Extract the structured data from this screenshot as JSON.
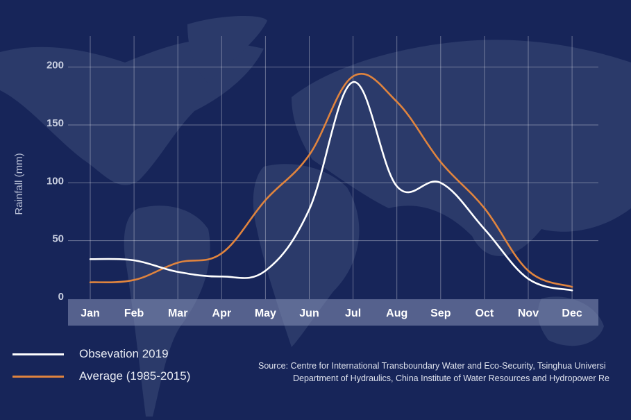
{
  "chart_data": {
    "type": "line",
    "ylabel": "Rainfall (mm)",
    "xlabel": "",
    "categories": [
      "Jan",
      "Feb",
      "Mar",
      "Apr",
      "May",
      "Jun",
      "Jul",
      "Aug",
      "Sep",
      "Oct",
      "Nov",
      "Dec"
    ],
    "yticks": [
      "0",
      "50",
      "100",
      "150",
      "200"
    ],
    "ylim": [
      0,
      228
    ],
    "grid": true,
    "legend_position": "bottom-left",
    "series": [
      {
        "name": "Obsevation 2019",
        "color": "#ffffff",
        "values": [
          34,
          33,
          23,
          19,
          24,
          77,
          187,
          97,
          100,
          60,
          17,
          7
        ]
      },
      {
        "name": "Average (1985-2015)",
        "color": "#e0843e",
        "values": [
          14,
          16,
          31,
          39,
          85,
          124,
          192,
          170,
          118,
          78,
          24,
          10
        ]
      }
    ],
    "source_lines": [
      "Source: Centre for International Transboundary Water and Eco-Security, Tsinghua Universi",
      "Department of Hydraulics, China Institute of Water Resources and Hydropower Re"
    ]
  }
}
